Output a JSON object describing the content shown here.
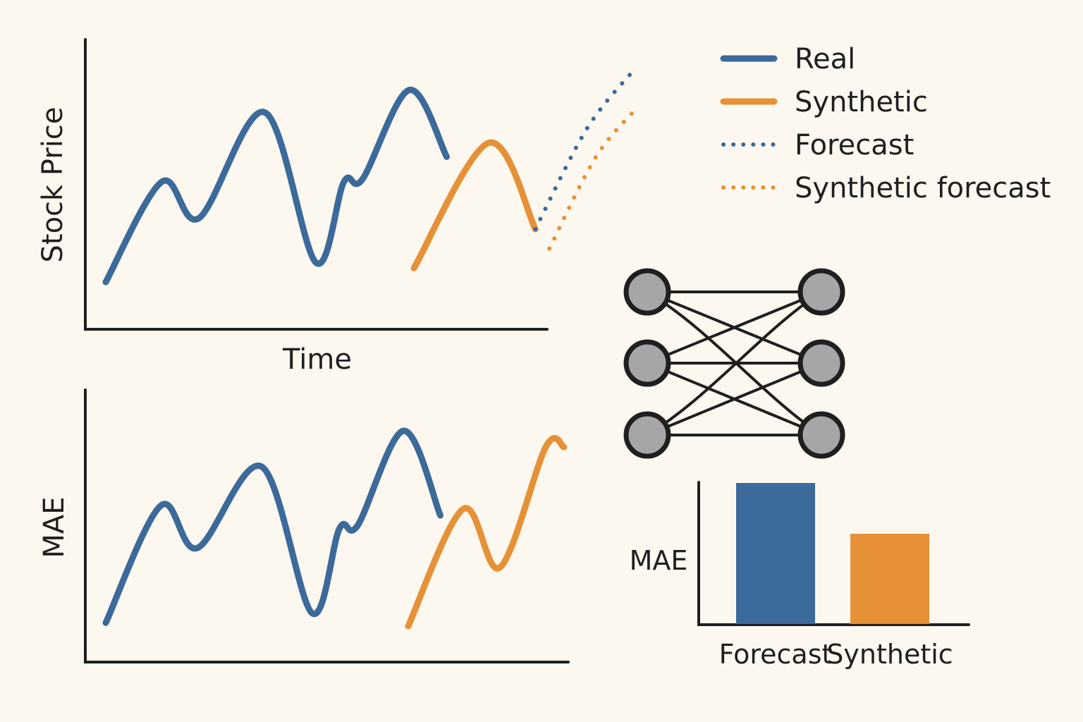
{
  "colors": {
    "real": "#3b6a9b",
    "synthetic": "#e69137",
    "axis": "#1f1f1f",
    "node_fill": "#a6a6a6",
    "background": "#fdf8ef"
  },
  "legend": {
    "items": [
      {
        "label": "Real",
        "style": "solid",
        "color": "#3b6a9b"
      },
      {
        "label": "Synthetic",
        "style": "solid",
        "color": "#e69137"
      },
      {
        "label": "Forecast",
        "style": "dotted",
        "color": "#3b6a9b"
      },
      {
        "label": "Synthetic forecast",
        "style": "dotted",
        "color": "#e69137"
      }
    ]
  },
  "network": {
    "icon": "neural-network-icon",
    "layers": [
      3,
      3
    ]
  },
  "chart_data": [
    {
      "type": "line",
      "title": "",
      "xlabel": "Time",
      "ylabel": "Stock Price",
      "grid": false,
      "legend_position": "top-right",
      "series": [
        {
          "name": "Real",
          "style": "solid",
          "x": [
            0,
            1.2,
            2.0,
            3.4,
            4.5,
            5.1,
            5.5,
            6.5,
            7.3
          ],
          "y": [
            0.5,
            4.1,
            2.8,
            6.6,
            1.2,
            4.1,
            4.2,
            7.4,
            5.0
          ]
        },
        {
          "name": "Synthetic",
          "style": "solid",
          "x": [
            6.6,
            8.2,
            9.2
          ],
          "y": [
            1.0,
            5.5,
            2.4
          ]
        },
        {
          "name": "Forecast",
          "style": "dotted",
          "x": [
            9.2,
            10.3,
            11.3
          ],
          "y": [
            2.4,
            6.0,
            8.1
          ]
        },
        {
          "name": "Synthetic forecast",
          "style": "dotted",
          "x": [
            9.5,
            10.5,
            11.4
          ],
          "y": [
            1.7,
            5.0,
            6.8
          ]
        }
      ]
    },
    {
      "type": "line",
      "title": "",
      "xlabel": "",
      "ylabel": "MAE",
      "grid": false,
      "series": [
        {
          "name": "Real",
          "style": "solid",
          "x": [
            0,
            1.2,
            2.0,
            3.4,
            4.5,
            5.1,
            5.5,
            6.5,
            7.3
          ],
          "y": [
            0.5,
            4.1,
            2.8,
            5.3,
            0.8,
            3.4,
            3.5,
            6.4,
            3.8
          ]
        },
        {
          "name": "Synthetic",
          "style": "solid",
          "x": [
            6.6,
            7.8,
            8.6,
            9.6,
            10.0
          ],
          "y": [
            0.4,
            4.0,
            2.2,
            5.9,
            5.9
          ]
        }
      ]
    },
    {
      "type": "bar",
      "title": "",
      "xlabel": "",
      "ylabel": "MAE",
      "categories": [
        "Forecast",
        "Synthetic"
      ],
      "values": [
        1.0,
        0.64
      ],
      "colors": [
        "#3b6a9b",
        "#e69137"
      ],
      "ylim": [
        0,
        1.08
      ]
    }
  ]
}
